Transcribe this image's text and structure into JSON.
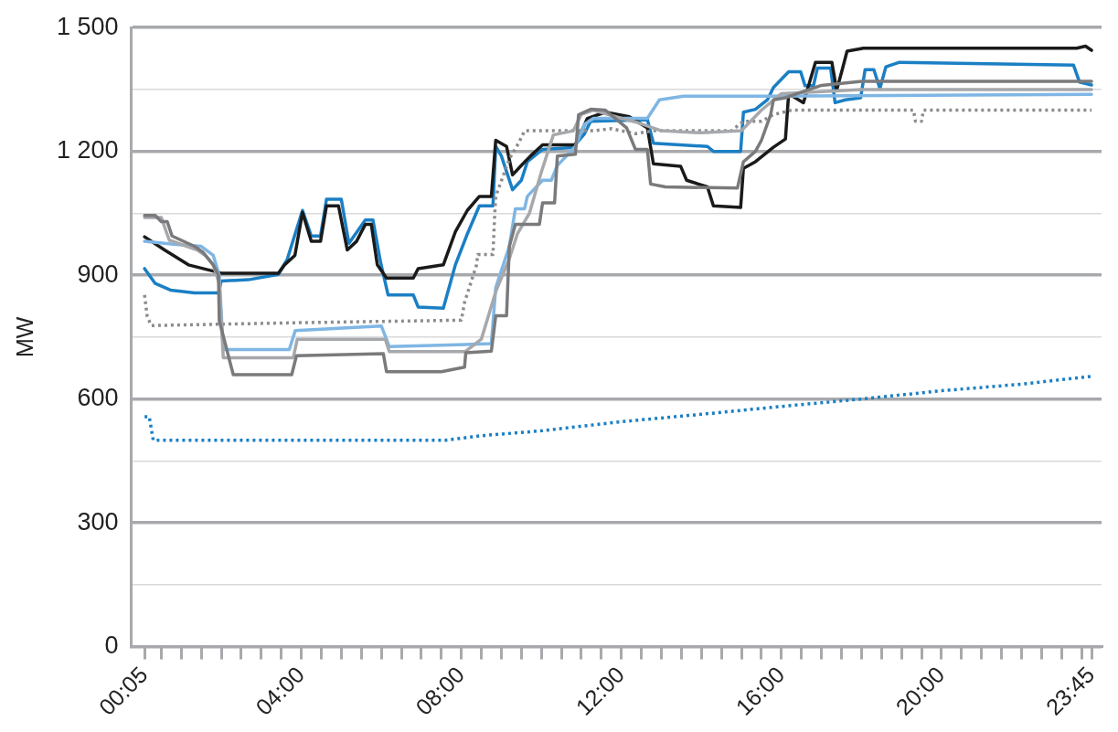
{
  "chart_data": {
    "type": "line",
    "ylabel": "MW",
    "grid": "y",
    "legend": false,
    "marker": "none",
    "line_style": "solid",
    "xlim": [
      -0.25,
      24
    ],
    "xticks": [
      {
        "value": 0.083,
        "label": "00:05"
      },
      {
        "value": 0.5,
        "label": null
      },
      {
        "value": 1,
        "label": null
      },
      {
        "value": 1.5,
        "label": null
      },
      {
        "value": 2,
        "label": null
      },
      {
        "value": 2.5,
        "label": null
      },
      {
        "value": 3,
        "label": null
      },
      {
        "value": 3.5,
        "label": null
      },
      {
        "value": 4,
        "label": "04:00"
      },
      {
        "value": 4.5,
        "label": null
      },
      {
        "value": 5,
        "label": null
      },
      {
        "value": 5.5,
        "label": null
      },
      {
        "value": 6,
        "label": null
      },
      {
        "value": 6.5,
        "label": null
      },
      {
        "value": 7,
        "label": null
      },
      {
        "value": 7.5,
        "label": null
      },
      {
        "value": 8,
        "label": "08:00"
      },
      {
        "value": 8.5,
        "label": null
      },
      {
        "value": 9,
        "label": null
      },
      {
        "value": 9.5,
        "label": null
      },
      {
        "value": 10,
        "label": null
      },
      {
        "value": 10.5,
        "label": null
      },
      {
        "value": 11,
        "label": null
      },
      {
        "value": 11.5,
        "label": null
      },
      {
        "value": 12,
        "label": "12:00"
      },
      {
        "value": 12.5,
        "label": null
      },
      {
        "value": 13,
        "label": null
      },
      {
        "value": 13.5,
        "label": null
      },
      {
        "value": 14,
        "label": null
      },
      {
        "value": 14.5,
        "label": null
      },
      {
        "value": 15,
        "label": null
      },
      {
        "value": 15.5,
        "label": null
      },
      {
        "value": 16,
        "label": "16:00"
      },
      {
        "value": 16.5,
        "label": null
      },
      {
        "value": 17,
        "label": null
      },
      {
        "value": 17.5,
        "label": null
      },
      {
        "value": 18,
        "label": null
      },
      {
        "value": 18.5,
        "label": null
      },
      {
        "value": 19,
        "label": null
      },
      {
        "value": 19.5,
        "label": null
      },
      {
        "value": 20,
        "label": "20:00"
      },
      {
        "value": 20.5,
        "label": null
      },
      {
        "value": 21,
        "label": null
      },
      {
        "value": 21.5,
        "label": null
      },
      {
        "value": 22,
        "label": null
      },
      {
        "value": 22.5,
        "label": null
      },
      {
        "value": 23,
        "label": null
      },
      {
        "value": 23.5,
        "label": null
      },
      {
        "value": 23.75,
        "label": "23:45"
      }
    ],
    "ylim": [
      0,
      1500
    ],
    "yticks": [
      0,
      {
        "value": 150,
        "label": null
      },
      300,
      {
        "value": 450,
        "label": null
      },
      600,
      {
        "value": 750,
        "label": null
      },
      900,
      {
        "value": 1050,
        "label": null
      },
      {
        "value": 1200,
        "label": "1 200"
      },
      {
        "value": 1350,
        "label": null
      },
      {
        "value": 1500,
        "label": "1 500"
      }
    ],
    "series": [
      {
        "color": "#7a7a7c",
        "x": [
          0.083,
          0.35,
          0.5,
          0.65,
          0.77,
          1.33,
          1.55,
          1.8,
          1.93,
          1.95,
          2.3,
          3.76,
          3.88,
          6.05,
          6.13,
          7.5,
          8.08,
          8.11,
          8.75,
          8.86,
          9.13,
          9.2,
          9.35,
          9.95,
          10.03,
          10.33,
          10.4,
          10.85,
          10.93,
          11.23,
          11.6,
          12.13,
          12.35,
          12.65,
          12.73,
          13.1,
          14.9,
          15.05,
          15.35,
          15.5,
          15.73,
          15.8,
          16.1,
          17,
          18,
          23.75
        ],
        "values": [
          1045,
          1045,
          1030,
          1030,
          995,
          970,
          955,
          925,
          900,
          790,
          659,
          659,
          705,
          710,
          666,
          666,
          677,
          712,
          716,
          802,
          802,
          970,
          1023,
          1023,
          1075,
          1075,
          1189,
          1193,
          1289,
          1302,
          1300,
          1257,
          1205,
          1205,
          1121,
          1114,
          1111,
          1175,
          1200,
          1227,
          1289,
          1325,
          1330,
          1360,
          1370,
          1370
        ]
      },
      {
        "color": "#a6a8ab",
        "x": [
          0.083,
          0.5,
          0.7,
          1.4,
          1.6,
          1.8,
          1.95,
          2.05,
          3.8,
          3.9,
          6.1,
          6.2,
          8.1,
          8.5,
          8.86,
          9.2,
          9.4,
          9.7,
          10,
          10.3,
          10.8,
          11,
          11.3,
          12,
          12.4,
          13,
          14,
          15,
          15.5,
          16,
          17,
          18,
          23.75
        ],
        "values": [
          1040,
          1040,
          985,
          961,
          948,
          925,
          880,
          700,
          700,
          745,
          745,
          715,
          715,
          745,
          860,
          940,
          1000,
          1050,
          1150,
          1240,
          1250,
          1290,
          1300,
          1280,
          1270,
          1250,
          1245,
          1250,
          1300,
          1340,
          1345,
          1350,
          1350
        ]
      },
      {
        "color": "#8c8c8c",
        "line_style": "dotted",
        "x": [
          0.083,
          0.15,
          0.25,
          4,
          8,
          8.08,
          8.38,
          8.41,
          8.79,
          8.83,
          8.86,
          9.2,
          9.43,
          9.58,
          10.7,
          11.3,
          11.75,
          12.35,
          12.8,
          14.75,
          15.05,
          15.5,
          15.8,
          16.25,
          19.3,
          19.35,
          19.5,
          19.55,
          23.75
        ],
        "values": [
          852,
          800,
          778,
          785,
          791,
          834,
          925,
          950,
          950,
          1039,
          1091,
          1182,
          1220,
          1250,
          1250,
          1250,
          1255,
          1243,
          1250,
          1250,
          1273,
          1273,
          1289,
          1300,
          1300,
          1273,
          1273,
          1300,
          1300
        ]
      },
      {
        "color": "#1b7fc4",
        "line_style": "dotted",
        "x": [
          0.083,
          0.2,
          0.3,
          7.6,
          8.5,
          10,
          12,
          14,
          16,
          18,
          20,
          22,
          23.75
        ],
        "values": [
          557,
          557,
          500,
          500,
          511,
          523,
          545,
          563,
          582,
          600,
          620,
          636,
          655
        ]
      },
      {
        "color": "#7fb6e4",
        "x": [
          0.083,
          0.8,
          1.5,
          1.8,
          1.95,
          2.05,
          3.7,
          3.85,
          6.0,
          6.2,
          8.75,
          8.86,
          9.2,
          9.35,
          9.58,
          9.65,
          10.03,
          10.25,
          10.4,
          10.63,
          10.85,
          11.08,
          11.3,
          12.65,
          12.95,
          13.55,
          15.65,
          23.75
        ],
        "values": [
          982,
          975,
          970,
          948,
          900,
          720,
          720,
          766,
          777,
          727,
          734,
          870,
          970,
          1061,
          1061,
          1091,
          1130,
          1130,
          1166,
          1189,
          1212,
          1266,
          1280,
          1280,
          1325,
          1334,
          1334,
          1338
        ]
      },
      {
        "color": "#1a1a1a",
        "x": [
          0.083,
          0.6,
          1.18,
          2.0,
          3.43,
          3.58,
          3.84,
          4.03,
          4.25,
          4.48,
          4.63,
          4.93,
          5.15,
          5.38,
          5.6,
          5.75,
          5.9,
          6.13,
          6.8,
          6.92,
          7.55,
          7.85,
          8.15,
          8.45,
          8.75,
          8.86,
          9.13,
          9.28,
          9.5,
          9.73,
          10.03,
          10.85,
          11.15,
          11.6,
          12.2,
          12.65,
          12.8,
          13.48,
          13.63,
          14.15,
          14.3,
          14.98,
          15.05,
          15.35,
          15.8,
          16.1,
          16.18,
          16.55,
          16.85,
          17.26,
          17.38,
          17.53,
          17.64,
          18.05,
          23.38,
          23.6,
          23.75
        ],
        "values": [
          993,
          960,
          925,
          905,
          905,
          925,
          948,
          1052,
          982,
          982,
          1068,
          1068,
          961,
          982,
          1023,
          1023,
          925,
          893,
          893,
          916,
          925,
          1005,
          1057,
          1091,
          1091,
          1227,
          1212,
          1143,
          1166,
          1189,
          1216,
          1216,
          1280,
          1295,
          1284,
          1257,
          1170,
          1164,
          1130,
          1114,
          1068,
          1064,
          1159,
          1175,
          1210,
          1230,
          1340,
          1318,
          1416,
          1416,
          1348,
          1402,
          1443,
          1450,
          1450,
          1455,
          1445
        ]
      },
      {
        "color": "#1b7fc4",
        "x": [
          0.083,
          0.35,
          0.73,
          1.33,
          1.93,
          2.0,
          2.68,
          3.43,
          3.65,
          4.03,
          4.25,
          4.48,
          4.63,
          5.0,
          5.19,
          5.6,
          5.79,
          5.98,
          6.17,
          6.8,
          6.92,
          7.55,
          7.85,
          8.15,
          8.45,
          8.79,
          8.86,
          9.0,
          9.28,
          9.5,
          9.65,
          10.03,
          10.78,
          11.08,
          11.23,
          12.65,
          12.8,
          14.15,
          14.3,
          14.98,
          15.05,
          15.35,
          15.65,
          15.8,
          16.18,
          16.48,
          16.59,
          16.8,
          16.9,
          17.23,
          17.34,
          17.6,
          17.98,
          18.09,
          18.31,
          18.46,
          18.61,
          18.95,
          23.3,
          23.45,
          23.75
        ],
        "values": [
          916,
          880,
          864,
          857,
          857,
          886,
          889,
          902,
          939,
          1057,
          995,
          995,
          1084,
          1084,
          977,
          1034,
          1034,
          932,
          852,
          852,
          823,
          820,
          925,
          1000,
          1068,
          1068,
          1212,
          1189,
          1107,
          1130,
          1175,
          1205,
          1209,
          1243,
          1273,
          1277,
          1220,
          1212,
          1200,
          1200,
          1295,
          1302,
          1325,
          1355,
          1393,
          1393,
          1359,
          1359,
          1402,
          1402,
          1318,
          1325,
          1330,
          1398,
          1398,
          1352,
          1405,
          1416,
          1409,
          1368,
          1361
        ]
      }
    ]
  }
}
